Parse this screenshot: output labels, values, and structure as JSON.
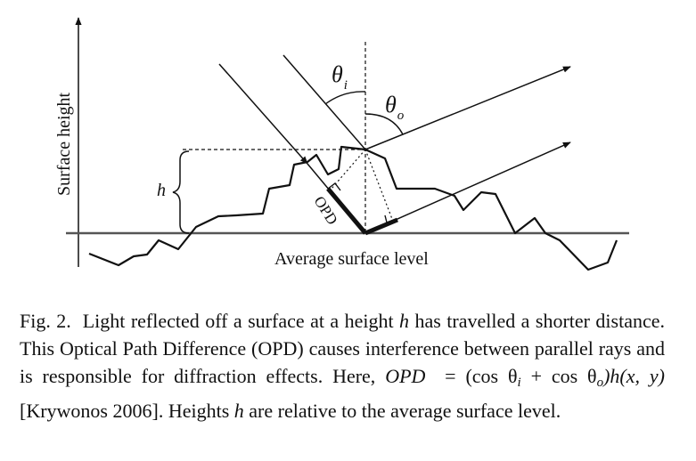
{
  "figure": {
    "y_axis_label": "Surface height",
    "x_axis_label": "Average surface level",
    "height_symbol": "h",
    "opd_label": "OPD",
    "theta_i": {
      "base": "θ",
      "sub": "i"
    },
    "theta_o": {
      "base": "θ",
      "sub": "o"
    }
  },
  "caption": {
    "fig_label": "Fig. 2.",
    "part1": "Light reflected off a surface at a height",
    "h1": "h",
    "part2": "has travelled a shorter distance. This Optical Path Difference (OPD) causes interference between parallel rays and is responsible for diffraction effects. Here,",
    "opd_eq_lhs": "OPD",
    "eq_sign": "=",
    "formula": "(cos θ",
    "formula_sub_i": "i",
    "formula_plus": " + cos θ",
    "formula_sub_o": "o",
    "formula_end": ")h(x, y)",
    "citation": "[Krywonos 2006].",
    "part3": "Heights",
    "h2": "h",
    "part4": "are relative to the average surface level."
  }
}
